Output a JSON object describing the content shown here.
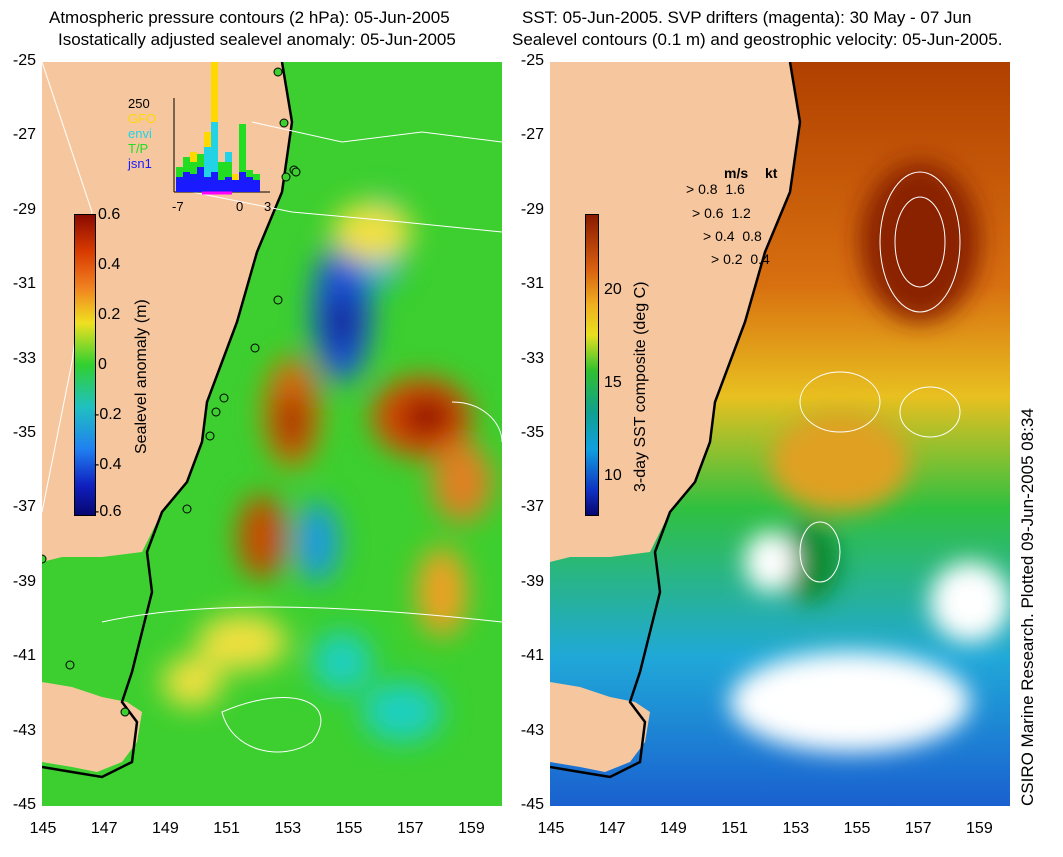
{
  "left_title_line1": "Atmospheric pressure contours (2 hPa): 05-Jun-2005",
  "left_title_line2": "Isostatically adjusted sealevel anomaly: 05-Jun-2005",
  "right_title_line1": "SST: 05-Jun-2005. SVP drifters (magenta): 30 May - 07 Jun",
  "right_title_line2": "Sealevel contours (0.1 m) and geostrophic velocity: 05-Jun-2005.",
  "y_ticks": [
    "-25",
    "-27",
    "-29",
    "-31",
    "-33",
    "-35",
    "-37",
    "-39",
    "-41",
    "-43",
    "-45"
  ],
  "x_ticks": [
    "145",
    "147",
    "149",
    "151",
    "153",
    "155",
    "157",
    "159"
  ],
  "left_colorbar": {
    "label": "Sealevel anomaly (m)",
    "ticks": [
      "0.6",
      "0.4",
      "0.2",
      "0",
      "-0.2",
      "-0.4",
      "-0.6"
    ],
    "range": [
      -0.6,
      0.6
    ]
  },
  "right_colorbar": {
    "label": "3-day SST composite (deg C)",
    "ticks": [
      "20",
      "15",
      "10"
    ],
    "range": [
      8,
      24
    ]
  },
  "histogram_legend": {
    "max_label": "250",
    "satellites": [
      {
        "name": "GFO",
        "color": "#ffd800"
      },
      {
        "name": "envi",
        "color": "#22d3e6"
      },
      {
        "name": "T/P",
        "color": "#22dd22"
      },
      {
        "name": "jsn1",
        "color": "#1a1aff"
      }
    ],
    "x_labels": [
      "-7",
      "0",
      "3"
    ]
  },
  "velocity_legend": {
    "header_ms": "m/s",
    "header_kt": "kt",
    "rows": [
      {
        "ms": "0.8",
        "kt": "1.6"
      },
      {
        "ms": "0.6",
        "kt": "1.2"
      },
      {
        "ms": "0.4",
        "kt": "0.8"
      },
      {
        "ms": "0.2",
        "kt": "0.4"
      }
    ]
  },
  "credit": "CSIRO Marine Research. Plotted 09-Jun-2005 08:34",
  "colors": {
    "land": "#f6c79e",
    "ocean_green": "#3ccf2f",
    "coast_line": "#000000",
    "contour": "#ffffff"
  }
}
